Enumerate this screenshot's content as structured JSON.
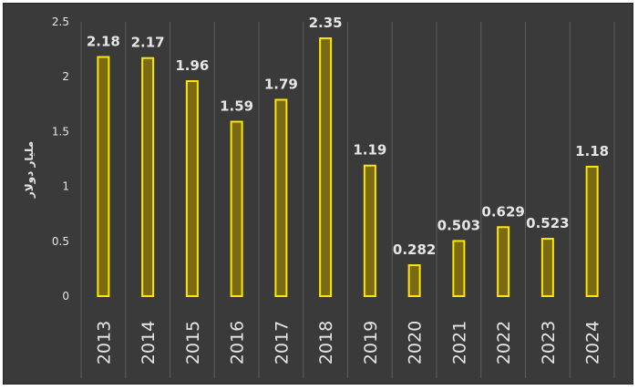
{
  "chart_data": {
    "type": "bar",
    "title": "",
    "xlabel": "",
    "ylabel": "مليار دولار",
    "categories": [
      "2013",
      "2014",
      "2015",
      "2016",
      "2017",
      "2018",
      "2019",
      "2020",
      "2021",
      "2022",
      "2023",
      "2024"
    ],
    "values": [
      2.18,
      2.17,
      1.96,
      1.59,
      1.79,
      2.35,
      1.19,
      0.282,
      0.503,
      0.629,
      0.523,
      1.18
    ],
    "data_labels": [
      "2.18",
      "2.17",
      "1.96",
      "1.59",
      "1.79",
      "2.35",
      "1.19",
      "0.282",
      "0.503",
      "0.629",
      "0.523",
      "1.18"
    ],
    "yticks": [
      "0",
      "0.5",
      "1",
      "1.5",
      "2",
      "2.5"
    ],
    "ytick_values": [
      0,
      0.5,
      1,
      1.5,
      2,
      2.5
    ],
    "ylim": [
      0,
      2.5
    ],
    "grid": "vertical",
    "legend": "none",
    "colors": {
      "background": "#3a3a3a",
      "bar_fill": "#7a6a12",
      "bar_stroke": "#ffe600",
      "grid": "#5c5c5c",
      "text": "#e6e6e6"
    }
  }
}
